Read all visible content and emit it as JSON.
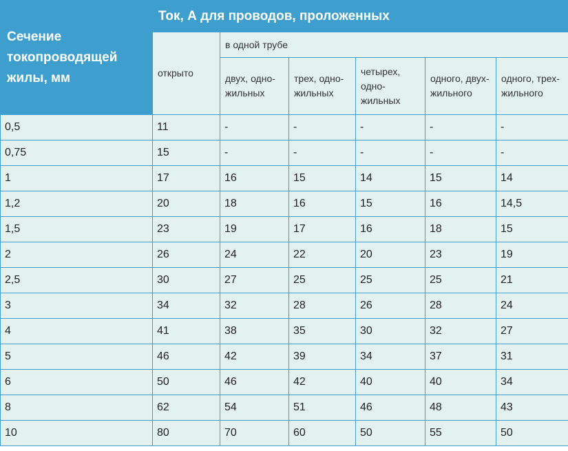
{
  "table": {
    "section_header": "Сечение токопроводящей жилы, мм",
    "main_header": "Ток, А для проводов, проложенных",
    "open_header": "открыто",
    "pipe_header": "в одной трубе",
    "pipe_subheaders": [
      "двух, одно-жильных",
      "трех, одно-жильных",
      "четырех, одно-жильных",
      "одного, двух-жильного",
      "одного, трех-жильного"
    ],
    "rows": [
      [
        "0,5",
        "11",
        "-",
        "-",
        "-",
        "-",
        "-"
      ],
      [
        "0,75",
        "15",
        "-",
        "-",
        "-",
        "-",
        "-"
      ],
      [
        "1",
        "17",
        "16",
        "15",
        "14",
        "15",
        "14"
      ],
      [
        "1,2",
        "20",
        "18",
        "16",
        "15",
        "16",
        "14,5"
      ],
      [
        "1,5",
        "23",
        "19",
        "17",
        "16",
        "18",
        "15"
      ],
      [
        "2",
        "26",
        "24",
        "22",
        "20",
        "23",
        "19"
      ],
      [
        "2,5",
        "30",
        "27",
        "25",
        "25",
        "25",
        "21"
      ],
      [
        "3",
        "34",
        "32",
        "28",
        "26",
        "28",
        "24"
      ],
      [
        "4",
        "41",
        "38",
        "35",
        "30",
        "32",
        "27"
      ],
      [
        "5",
        "46",
        "42",
        "39",
        "34",
        "37",
        "31"
      ],
      [
        "6",
        "50",
        "46",
        "42",
        "40",
        "40",
        "34"
      ],
      [
        "8",
        "62",
        "54",
        "51",
        "46",
        "48",
        "43"
      ],
      [
        "10",
        "80",
        "70",
        "60",
        "50",
        "55",
        "50"
      ]
    ]
  },
  "colors": {
    "header_blue": "#3e9fcf",
    "cell_background": "#e3f1ef"
  }
}
